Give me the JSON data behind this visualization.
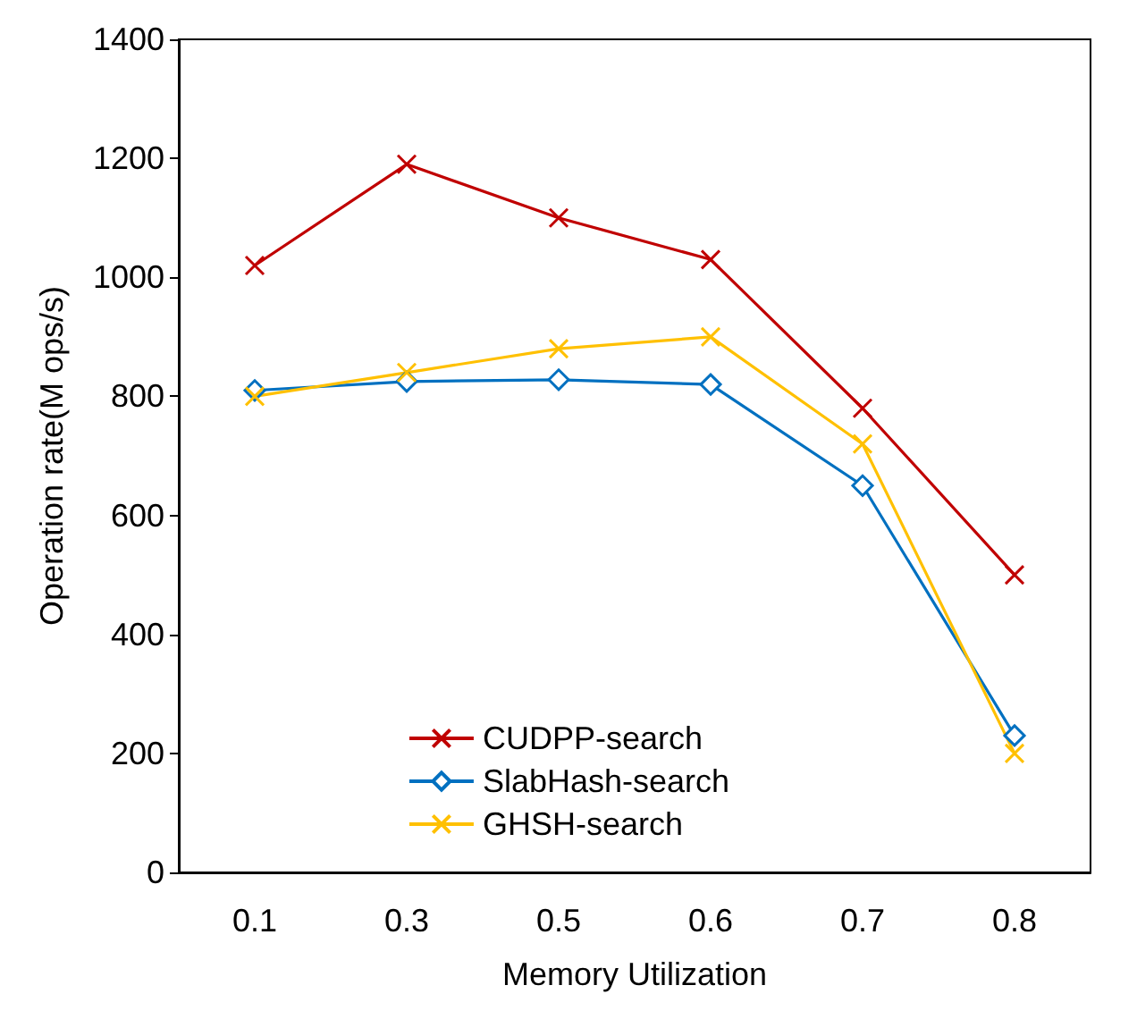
{
  "chart_data": {
    "type": "line",
    "xlabel": "Memory Utilization",
    "ylabel": "Operation rate(M ops/s)",
    "categories": [
      "0.1",
      "0.3",
      "0.5",
      "0.6",
      "0.7",
      "0.8"
    ],
    "series": [
      {
        "name": "CUDPP-search",
        "color": "#c00000",
        "marker": "cross",
        "values": [
          1020,
          1190,
          1100,
          1030,
          780,
          500
        ]
      },
      {
        "name": "SlabHash-search",
        "color": "#0070c0",
        "marker": "diamond",
        "values": [
          810,
          825,
          828,
          820,
          650,
          230
        ]
      },
      {
        "name": "GHSH-search",
        "color": "#ffc000",
        "marker": "cross",
        "values": [
          800,
          840,
          880,
          900,
          720,
          200
        ]
      }
    ],
    "ylim": [
      0,
      1400
    ],
    "yticks": [
      0,
      200,
      400,
      600,
      800,
      1000,
      1200,
      1400
    ],
    "grid": false,
    "legend": "bottom",
    "line_style": "solid"
  }
}
